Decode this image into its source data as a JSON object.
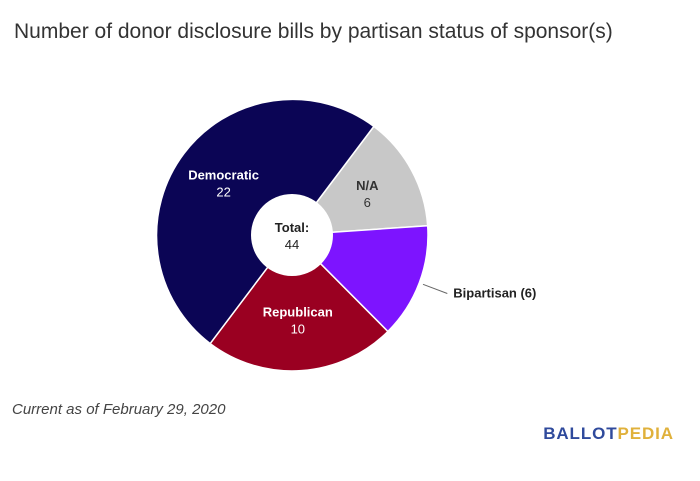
{
  "chart_data": {
    "type": "pie",
    "title": "Number of donor disclosure bills by partisan status of sponsor(s)",
    "total_label": "Total:",
    "total_value": "44",
    "slices": [
      {
        "name": "N/A",
        "value": 6,
        "color": "#c8c8c8",
        "label": "N/A",
        "value_label": "6",
        "text_color": "#333333",
        "label_position": "inside"
      },
      {
        "name": "Bipartisan",
        "value": 6,
        "color": "#7d14ff",
        "label": "Bipartisan (6)",
        "value_label": "",
        "text_color": "#222222",
        "label_position": "outside"
      },
      {
        "name": "Republican",
        "value": 10,
        "color": "#9a0021",
        "label": "Republican",
        "value_label": "10",
        "text_color": "#ffffff",
        "label_position": "inside"
      },
      {
        "name": "Democratic",
        "value": 22,
        "color": "#0b0555",
        "label": "Democratic",
        "value_label": "22",
        "text_color": "#ffffff",
        "label_position": "inside"
      }
    ]
  },
  "footnote": "Current as of February 29, 2020",
  "logo": {
    "part1": "BALLOT",
    "part2": "PEDIA"
  }
}
